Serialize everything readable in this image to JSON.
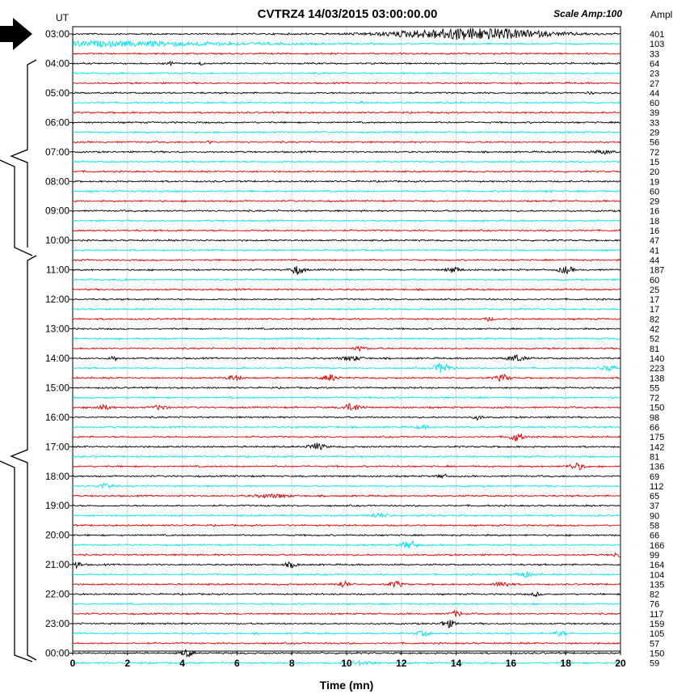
{
  "chart_data": {
    "type": "line",
    "title": "CVTRZ4 14/03/2015  03:00:00.00",
    "scale_label": "Scale Amp:100",
    "y_header": "UT",
    "amp_header": "Ampl",
    "xlabel": "Time (mn)",
    "xlim": [
      0,
      20
    ],
    "x_ticks": [
      "0",
      "2",
      "4",
      "6",
      "8",
      "10",
      "12",
      "14",
      "16",
      "18",
      "20"
    ],
    "hour_labels": [
      "03:00",
      "04:00",
      "05:00",
      "06:00",
      "07:00",
      "08:00",
      "09:00",
      "10:00",
      "11:00",
      "12:00",
      "13:00",
      "14:00",
      "15:00",
      "16:00",
      "17:00",
      "18:00",
      "19:00",
      "20:00",
      "21:00",
      "22:00",
      "23:00",
      "00:00"
    ],
    "trace_minutes": 20,
    "trace_colors": [
      "#000000",
      "#00e5ee",
      "#e00000"
    ],
    "grid": true,
    "amplitudes": [
      401,
      103,
      33,
      64,
      23,
      27,
      44,
      60,
      39,
      33,
      29,
      56,
      72,
      15,
      20,
      19,
      60,
      29,
      16,
      18,
      16,
      47,
      41,
      44,
      187,
      60,
      25,
      17,
      17,
      82,
      42,
      52,
      81,
      140,
      223,
      138,
      55,
      72,
      150,
      98,
      66,
      175,
      142,
      81,
      136,
      69,
      112,
      65,
      37,
      90,
      58,
      66,
      166,
      99,
      164,
      104,
      135,
      82,
      76,
      117,
      159,
      105,
      57,
      150,
      59
    ],
    "events": [
      {
        "trace": 0,
        "t": 14.5,
        "amp": 401,
        "dur": 5.5
      },
      {
        "trace": 1,
        "t": 0.5,
        "amp": 103,
        "dur": 12
      },
      {
        "trace": 3,
        "t": 3.6,
        "amp": 64,
        "dur": 0.3
      },
      {
        "trace": 3,
        "t": 4.7,
        "amp": 60,
        "dur": 0.2
      },
      {
        "trace": 6,
        "t": 18.9,
        "amp": 44,
        "dur": 0.2
      },
      {
        "trace": 7,
        "t": 10.6,
        "amp": 60,
        "dur": 0.2
      },
      {
        "trace": 11,
        "t": 5.0,
        "amp": 56,
        "dur": 0.2
      },
      {
        "trace": 12,
        "t": 19.4,
        "amp": 72,
        "dur": 0.7
      },
      {
        "trace": 16,
        "t": 17.4,
        "amp": 60,
        "dur": 0.2
      },
      {
        "trace": 24,
        "t": 8.2,
        "amp": 187,
        "dur": 0.5
      },
      {
        "trace": 24,
        "t": 13.9,
        "amp": 120,
        "dur": 0.5
      },
      {
        "trace": 24,
        "t": 18.0,
        "amp": 150,
        "dur": 0.5
      },
      {
        "trace": 25,
        "t": 1.8,
        "amp": 60,
        "dur": 0.4
      },
      {
        "trace": 29,
        "t": 15.2,
        "amp": 82,
        "dur": 0.3
      },
      {
        "trace": 32,
        "t": 10.5,
        "amp": 81,
        "dur": 0.5
      },
      {
        "trace": 33,
        "t": 1.5,
        "amp": 100,
        "dur": 0.3
      },
      {
        "trace": 33,
        "t": 10.2,
        "amp": 90,
        "dur": 0.8
      },
      {
        "trace": 33,
        "t": 16.2,
        "amp": 140,
        "dur": 0.6
      },
      {
        "trace": 34,
        "t": 13.5,
        "amp": 223,
        "dur": 0.6
      },
      {
        "trace": 34,
        "t": 19.6,
        "amp": 100,
        "dur": 0.6
      },
      {
        "trace": 35,
        "t": 5.9,
        "amp": 110,
        "dur": 0.5
      },
      {
        "trace": 35,
        "t": 9.4,
        "amp": 138,
        "dur": 0.5
      },
      {
        "trace": 35,
        "t": 15.7,
        "amp": 130,
        "dur": 0.5
      },
      {
        "trace": 38,
        "t": 1.1,
        "amp": 100,
        "dur": 0.6
      },
      {
        "trace": 38,
        "t": 3.2,
        "amp": 100,
        "dur": 0.5
      },
      {
        "trace": 38,
        "t": 10.2,
        "amp": 150,
        "dur": 0.7
      },
      {
        "trace": 39,
        "t": 14.8,
        "amp": 98,
        "dur": 0.3
      },
      {
        "trace": 40,
        "t": 12.8,
        "amp": 66,
        "dur": 0.5
      },
      {
        "trace": 41,
        "t": 16.2,
        "amp": 175,
        "dur": 0.5
      },
      {
        "trace": 42,
        "t": 8.9,
        "amp": 142,
        "dur": 0.6
      },
      {
        "trace": 44,
        "t": 18.4,
        "amp": 136,
        "dur": 0.6
      },
      {
        "trace": 45,
        "t": 13.5,
        "amp": 69,
        "dur": 0.4
      },
      {
        "trace": 46,
        "t": 1.2,
        "amp": 112,
        "dur": 0.5
      },
      {
        "trace": 47,
        "t": 7.3,
        "amp": 65,
        "dur": 1.4
      },
      {
        "trace": 49,
        "t": 11.2,
        "amp": 90,
        "dur": 0.7
      },
      {
        "trace": 52,
        "t": 12.3,
        "amp": 166,
        "dur": 0.6
      },
      {
        "trace": 53,
        "t": 19.9,
        "amp": 99,
        "dur": 0.4
      },
      {
        "trace": 54,
        "t": 0.1,
        "amp": 164,
        "dur": 0.4
      },
      {
        "trace": 54,
        "t": 8.0,
        "amp": 100,
        "dur": 0.5
      },
      {
        "trace": 55,
        "t": 16.5,
        "amp": 104,
        "dur": 0.6
      },
      {
        "trace": 56,
        "t": 9.9,
        "amp": 135,
        "dur": 0.4
      },
      {
        "trace": 56,
        "t": 11.8,
        "amp": 120,
        "dur": 0.5
      },
      {
        "trace": 56,
        "t": 15.7,
        "amp": 110,
        "dur": 0.6
      },
      {
        "trace": 57,
        "t": 16.9,
        "amp": 82,
        "dur": 0.3
      },
      {
        "trace": 59,
        "t": 14.0,
        "amp": 117,
        "dur": 0.4
      },
      {
        "trace": 60,
        "t": 13.7,
        "amp": 159,
        "dur": 0.5
      },
      {
        "trace": 61,
        "t": 12.8,
        "amp": 105,
        "dur": 0.5
      },
      {
        "trace": 61,
        "t": 17.8,
        "amp": 100,
        "dur": 0.5
      },
      {
        "trace": 63,
        "t": 4.2,
        "amp": 150,
        "dur": 0.4
      },
      {
        "trace": 64,
        "t": 10.5,
        "amp": 59,
        "dur": 1.0
      }
    ]
  }
}
